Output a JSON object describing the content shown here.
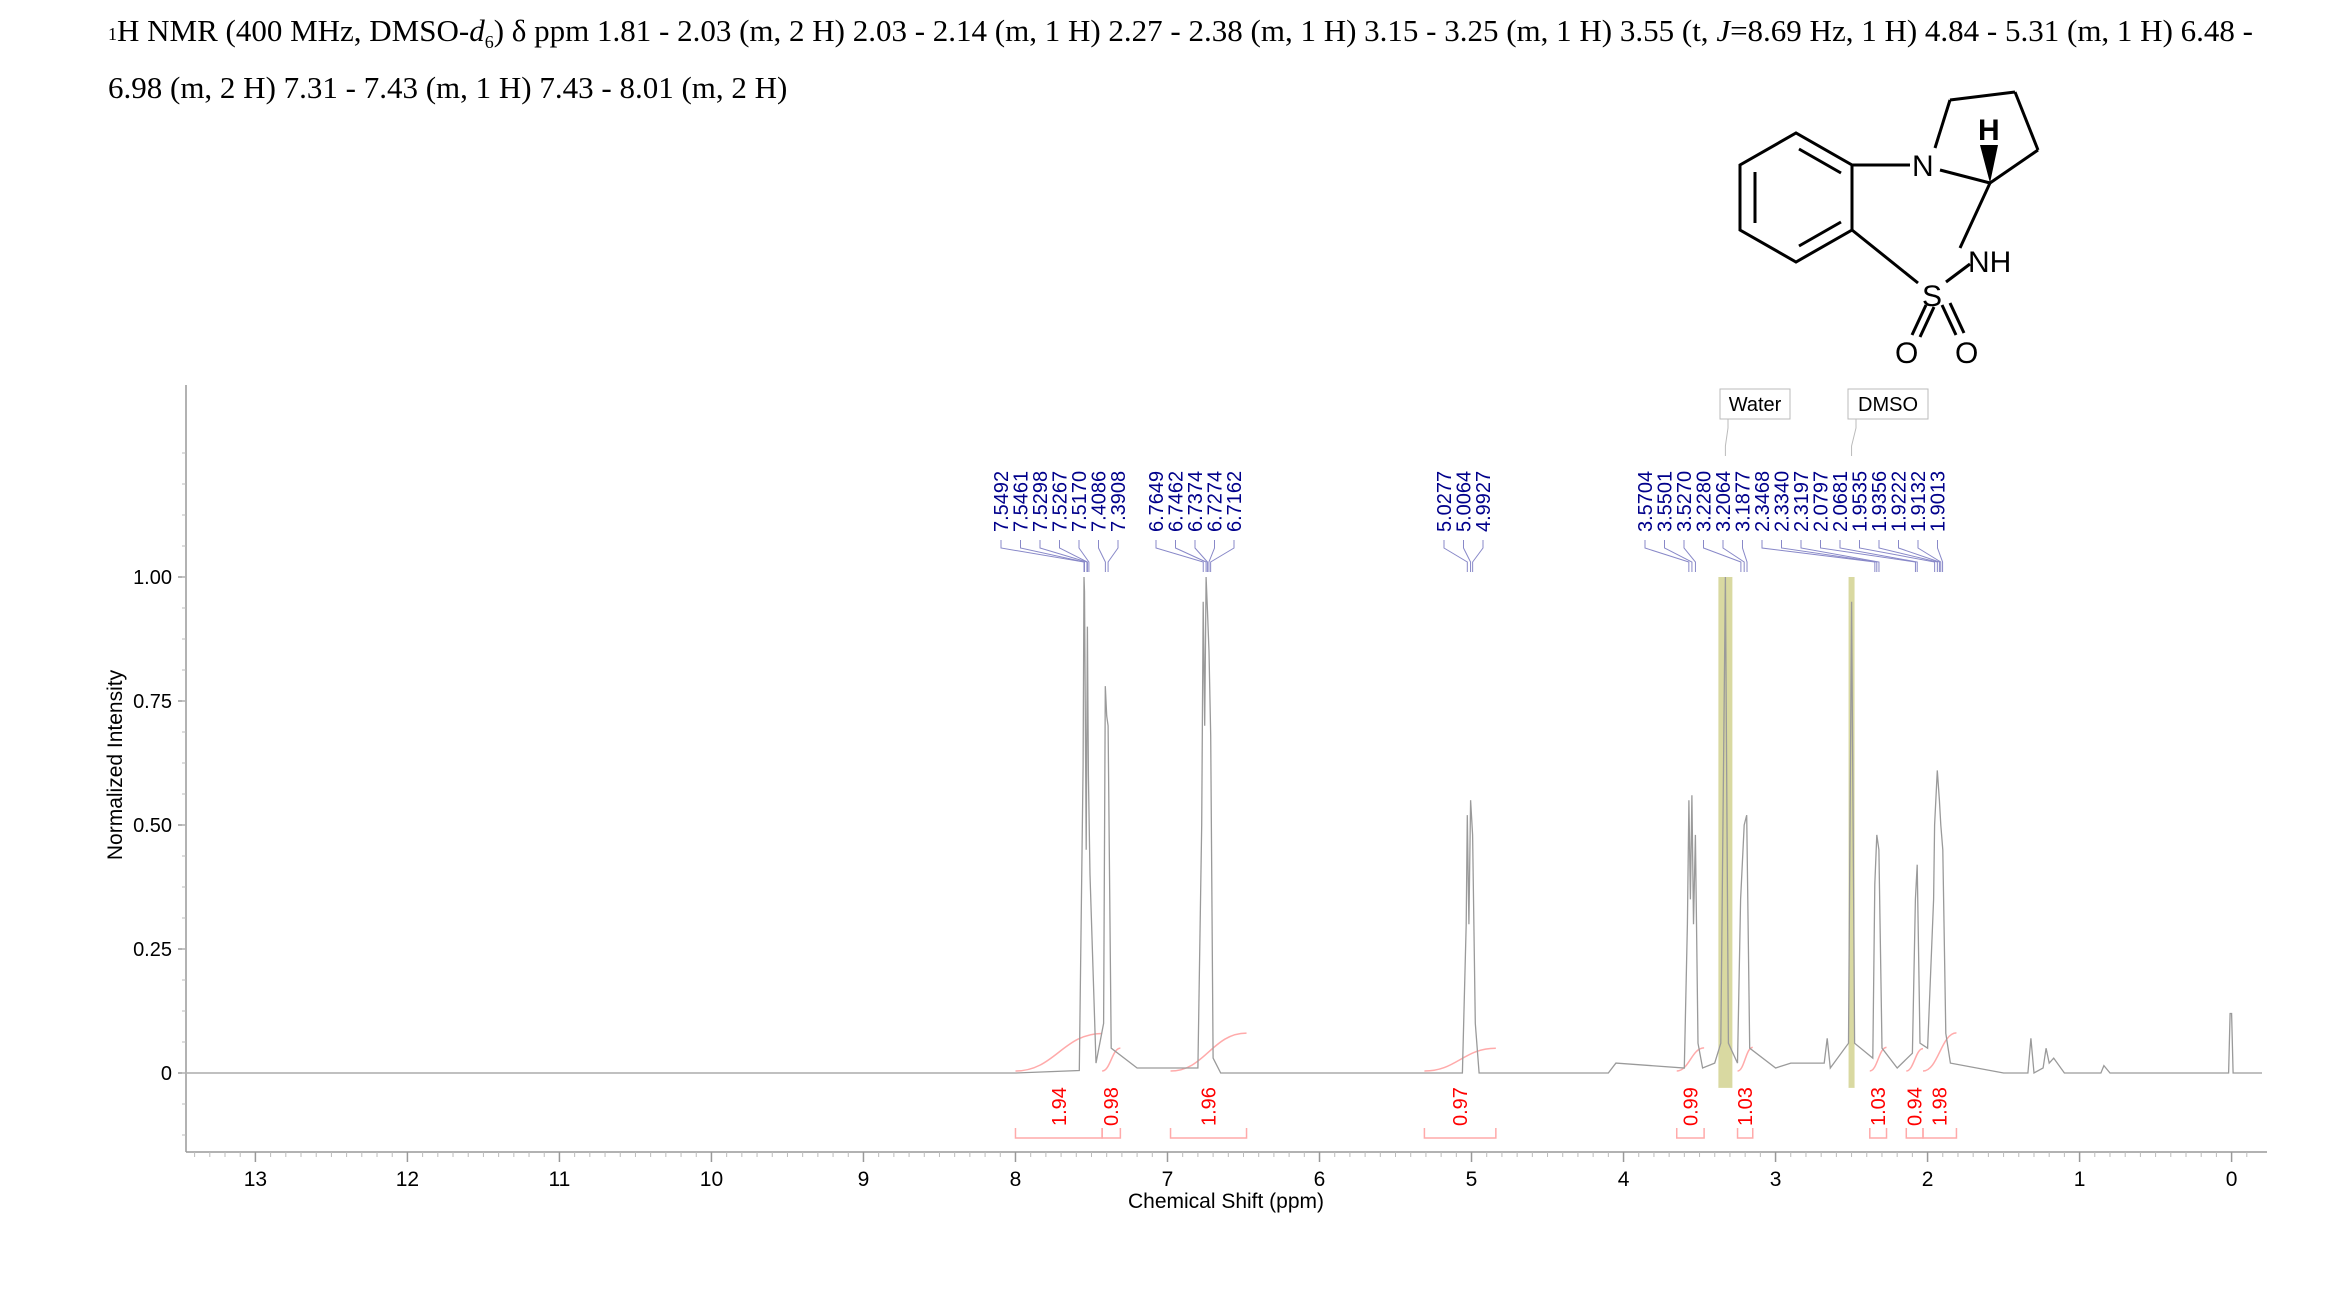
{
  "header": {
    "nucleus_mass": "1",
    "nucleus_symbol": "H NMR (400 MHz, DMSO-",
    "solvent_d": "d",
    "solvent_sub": "6",
    "after_solvent": ") δ ppm 1.81 - 2.03 (m, 2 H) 2.03 - 2.14 (m, 1 H) 2.27 - 2.38 (m, 1 H) 3.15 - 3.25 (m, 1 H) 3.55 (t, ",
    "j_symbol": "J",
    "after_j": "=8.69 Hz, 1 H) 4.84 - 5.31 (m, 1 H) 6.48 - 6.98 (m, 2 H) 7.31 - 7.43 (m, 1 H) 7.43 - 8.01 (m, 2 H)"
  },
  "molecule": {
    "atom_N": "N",
    "atom_H": "H",
    "atom_NH": "NH",
    "atom_S": "S",
    "atom_O1": "O",
    "atom_O2": "O"
  },
  "chart_data": {
    "type": "line",
    "xlabel": "Chemical Shift (ppm)",
    "ylabel": "Normalized Intensity",
    "xlim": [
      13.45,
      -0.2
    ],
    "ylim": [
      -0.16,
      1.4
    ],
    "x_reversed": true,
    "x_ticks": [
      13,
      12,
      11,
      10,
      9,
      8,
      7,
      6,
      5,
      4,
      3,
      2,
      1,
      0
    ],
    "y_ticks": [
      {
        "value": 1.0,
        "label": "1.00"
      },
      {
        "value": 0.75,
        "label": "0.75"
      },
      {
        "value": 0.5,
        "label": "0.50"
      },
      {
        "value": 0.25,
        "label": "0.25"
      },
      {
        "value": 0.0,
        "label": "0"
      }
    ],
    "series": [
      {
        "points": [
          [
            13.45,
            0.0
          ],
          [
            8.0,
            0.0
          ],
          [
            7.58,
            0.005
          ],
          [
            7.555,
            0.62
          ],
          [
            7.549,
            1.0
          ],
          [
            7.546,
            0.97
          ],
          [
            7.535,
            0.45
          ],
          [
            7.527,
            0.9
          ],
          [
            7.52,
            0.6
          ],
          [
            7.51,
            0.4
          ],
          [
            7.47,
            0.02
          ],
          [
            7.42,
            0.1
          ],
          [
            7.409,
            0.78
          ],
          [
            7.4,
            0.72
          ],
          [
            7.391,
            0.7
          ],
          [
            7.37,
            0.05
          ],
          [
            7.2,
            0.01
          ],
          [
            6.8,
            0.01
          ],
          [
            6.775,
            0.5
          ],
          [
            6.765,
            0.95
          ],
          [
            6.755,
            0.7
          ],
          [
            6.746,
            1.0
          ],
          [
            6.737,
            0.93
          ],
          [
            6.727,
            0.85
          ],
          [
            6.716,
            0.68
          ],
          [
            6.7,
            0.03
          ],
          [
            6.65,
            0.0
          ],
          [
            5.06,
            0.0
          ],
          [
            5.035,
            0.3
          ],
          [
            5.028,
            0.52
          ],
          [
            5.017,
            0.3
          ],
          [
            5.006,
            0.55
          ],
          [
            4.993,
            0.48
          ],
          [
            4.975,
            0.1
          ],
          [
            4.95,
            0.0
          ],
          [
            4.1,
            0.0
          ],
          [
            4.05,
            0.02
          ],
          [
            3.6,
            0.01
          ],
          [
            3.58,
            0.3
          ],
          [
            3.57,
            0.55
          ],
          [
            3.56,
            0.35
          ],
          [
            3.55,
            0.56
          ],
          [
            3.54,
            0.3
          ],
          [
            3.527,
            0.48
          ],
          [
            3.51,
            0.06
          ],
          [
            3.48,
            0.01
          ],
          [
            3.4,
            0.02
          ],
          [
            3.36,
            0.06
          ],
          [
            3.33,
            1.0
          ],
          [
            3.31,
            0.06
          ],
          [
            3.25,
            0.02
          ],
          [
            3.23,
            0.35
          ],
          [
            3.206,
            0.5
          ],
          [
            3.19,
            0.52
          ],
          [
            3.17,
            0.05
          ],
          [
            3.0,
            0.01
          ],
          [
            2.9,
            0.02
          ],
          [
            2.68,
            0.02
          ],
          [
            2.66,
            0.07
          ],
          [
            2.64,
            0.01
          ],
          [
            2.52,
            0.06
          ],
          [
            2.5,
            0.95
          ],
          [
            2.48,
            0.06
          ],
          [
            2.36,
            0.03
          ],
          [
            2.347,
            0.38
          ],
          [
            2.334,
            0.48
          ],
          [
            2.32,
            0.45
          ],
          [
            2.3,
            0.05
          ],
          [
            2.2,
            0.01
          ],
          [
            2.1,
            0.04
          ],
          [
            2.08,
            0.35
          ],
          [
            2.068,
            0.42
          ],
          [
            2.05,
            0.06
          ],
          [
            2.0,
            0.05
          ],
          [
            1.96,
            0.35
          ],
          [
            1.954,
            0.5
          ],
          [
            1.936,
            0.61
          ],
          [
            1.922,
            0.55
          ],
          [
            1.913,
            0.5
          ],
          [
            1.9,
            0.45
          ],
          [
            1.88,
            0.08
          ],
          [
            1.85,
            0.02
          ],
          [
            1.5,
            0.0
          ],
          [
            1.34,
            0.0
          ],
          [
            1.32,
            0.07
          ],
          [
            1.3,
            0.0
          ],
          [
            1.24,
            0.01
          ],
          [
            1.22,
            0.05
          ],
          [
            1.2,
            0.02
          ],
          [
            1.17,
            0.03
          ],
          [
            1.1,
            0.0
          ],
          [
            0.86,
            0.0
          ],
          [
            0.84,
            0.015
          ],
          [
            0.8,
            0.0
          ],
          [
            0.02,
            0.0
          ],
          [
            0.01,
            0.12
          ],
          [
            0.0,
            0.12
          ],
          [
            -0.01,
            0.0
          ],
          [
            -0.2,
            0.0
          ]
        ]
      }
    ],
    "peak_labels": [
      {
        "label": "7.5492",
        "ppm": 7.5492
      },
      {
        "label": "7.5461",
        "ppm": 7.5461
      },
      {
        "label": "7.5298",
        "ppm": 7.5298
      },
      {
        "label": "7.5267",
        "ppm": 7.5267
      },
      {
        "label": "7.5170",
        "ppm": 7.517
      },
      {
        "label": "7.4086",
        "ppm": 7.4086
      },
      {
        "label": "7.3908",
        "ppm": 7.3908
      },
      {
        "label": "6.7649",
        "ppm": 6.7649
      },
      {
        "label": "6.7462",
        "ppm": 6.7462
      },
      {
        "label": "6.7374",
        "ppm": 6.7374
      },
      {
        "label": "6.7274",
        "ppm": 6.7274
      },
      {
        "label": "6.7162",
        "ppm": 6.7162
      },
      {
        "label": "5.0277",
        "ppm": 5.0277
      },
      {
        "label": "5.0064",
        "ppm": 5.0064
      },
      {
        "label": "4.9927",
        "ppm": 4.9927
      },
      {
        "label": "3.5704",
        "ppm": 3.5704
      },
      {
        "label": "3.5501",
        "ppm": 3.5501
      },
      {
        "label": "3.5270",
        "ppm": 3.527
      },
      {
        "label": "3.2280",
        "ppm": 3.228
      },
      {
        "label": "3.2064",
        "ppm": 3.2064
      },
      {
        "label": "3.1877",
        "ppm": 3.1877
      },
      {
        "label": "2.3468",
        "ppm": 2.3468
      },
      {
        "label": "2.3340",
        "ppm": 2.334
      },
      {
        "label": "2.3197",
        "ppm": 2.3197
      },
      {
        "label": "2.0797",
        "ppm": 2.0797
      },
      {
        "label": "2.0681",
        "ppm": 2.0681
      },
      {
        "label": "1.9535",
        "ppm": 1.9535
      },
      {
        "label": "1.9356",
        "ppm": 1.9356
      },
      {
        "label": "1.9222",
        "ppm": 1.9222
      },
      {
        "label": "1.9132",
        "ppm": 1.9132
      },
      {
        "label": "1.9013",
        "ppm": 1.9013
      }
    ],
    "integrals": [
      {
        "label": "1.94",
        "from": 8.0,
        "to": 7.43,
        "value": 1.94
      },
      {
        "label": "0.98",
        "from": 7.43,
        "to": 7.31,
        "value": 0.98
      },
      {
        "label": "1.96",
        "from": 6.98,
        "to": 6.48,
        "value": 1.96
      },
      {
        "label": "0.97",
        "from": 5.31,
        "to": 4.84,
        "value": 0.97
      },
      {
        "label": "0.99",
        "from": 3.65,
        "to": 3.47,
        "value": 0.99
      },
      {
        "label": "1.03",
        "from": 3.25,
        "to": 3.15,
        "value": 1.03
      },
      {
        "label": "1.03",
        "from": 2.38,
        "to": 2.27,
        "value": 1.03
      },
      {
        "label": "0.94",
        "from": 2.14,
        "to": 2.03,
        "value": 0.94
      },
      {
        "label": "1.98",
        "from": 2.03,
        "to": 1.81,
        "value": 1.98
      }
    ],
    "solvent_labels": [
      {
        "label": "Water",
        "ppm": 3.33,
        "color": "#d7d79c"
      },
      {
        "label": "DMSO",
        "ppm": 2.5,
        "color": "#d7d79c"
      }
    ],
    "colors": {
      "spectrum": "#9a9a9a",
      "peak_label": "#00008b",
      "integral": "#ff0000",
      "integral_bracket": "#ffaaaa",
      "solvent_band": "#d7d79c"
    }
  }
}
